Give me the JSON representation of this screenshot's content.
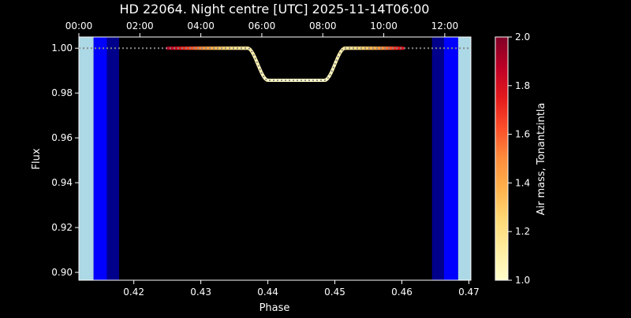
{
  "chart_data": {
    "type": "line",
    "title": "HD 22064. Night centre [UTC] 2025-11-14T06:00",
    "xlabel": "Phase",
    "ylabel": "Flux",
    "xlim": [
      0.4118,
      0.4703
    ],
    "ylim": [
      0.8965,
      1.005
    ],
    "x_ticks": [
      0.42,
      0.43,
      0.44,
      0.45,
      0.46,
      0.47
    ],
    "y_ticks": [
      0.9,
      0.92,
      0.94,
      0.96,
      0.98,
      1.0
    ],
    "x_tick_labels": [
      "0.42",
      "0.43",
      "0.44",
      "0.45",
      "0.46",
      "0.47"
    ],
    "y_tick_labels": [
      "0.90",
      "0.92",
      "0.94",
      "0.96",
      "0.98",
      "1.00"
    ],
    "top_axis": {
      "label_positions_phase": [
        0.4118,
        0.4209,
        0.43,
        0.4391,
        0.4482,
        0.4573,
        0.4664
      ],
      "tick_labels": [
        "00:00",
        "02:00",
        "04:00",
        "06:00",
        "08:00",
        "10:00",
        "12:00"
      ]
    },
    "twilight_bands": [
      {
        "from": 0.4118,
        "to": 0.414,
        "color": "#add8e6"
      },
      {
        "from": 0.414,
        "to": 0.416,
        "color": "#0000ff"
      },
      {
        "from": 0.416,
        "to": 0.4178,
        "color": "#00008b"
      },
      {
        "from": 0.4178,
        "to": 0.4645,
        "color": "#000000"
      },
      {
        "from": 0.4645,
        "to": 0.4663,
        "color": "#00008b"
      },
      {
        "from": 0.4663,
        "to": 0.4684,
        "color": "#0000ff"
      },
      {
        "from": 0.4684,
        "to": 0.4703,
        "color": "#add8e6"
      }
    ],
    "model": {
      "baseline_flux": 1.0,
      "transit_depth_flux": 0.9857,
      "ingress_start": 0.437,
      "ingress_end": 0.44,
      "egress_start": 0.4485,
      "egress_end": 0.4515,
      "dotted_color": "#888888"
    },
    "observed_segment": {
      "from": 0.425,
      "to": 0.4602,
      "airmass": [
        [
          0.425,
          1.92
        ],
        [
          0.4275,
          1.72
        ],
        [
          0.43,
          1.52
        ],
        [
          0.4325,
          1.34
        ],
        [
          0.435,
          1.2
        ],
        [
          0.4375,
          1.1
        ],
        [
          0.44,
          1.04
        ],
        [
          0.4425,
          1.01
        ],
        [
          0.445,
          1.0
        ],
        [
          0.4475,
          1.01
        ],
        [
          0.45,
          1.06
        ],
        [
          0.4525,
          1.16
        ],
        [
          0.455,
          1.3
        ],
        [
          0.4575,
          1.5
        ],
        [
          0.4602,
          1.8
        ]
      ]
    },
    "colorbar": {
      "label": "Air mass, Tonantzintla",
      "range": [
        1.0,
        2.0
      ],
      "ticks": [
        1.0,
        1.2,
        1.4,
        1.6,
        1.8,
        2.0
      ],
      "tick_labels": [
        "1.0",
        "1.2",
        "1.4",
        "1.6",
        "1.8",
        "2.0"
      ],
      "colormap": "YlOrRd",
      "colormap_stops": [
        "#ffffcc",
        "#ffeda0",
        "#fed976",
        "#feb24c",
        "#fd8d3c",
        "#fc4e2a",
        "#e31a1c",
        "#bd0026",
        "#800026"
      ]
    },
    "grid": false
  }
}
